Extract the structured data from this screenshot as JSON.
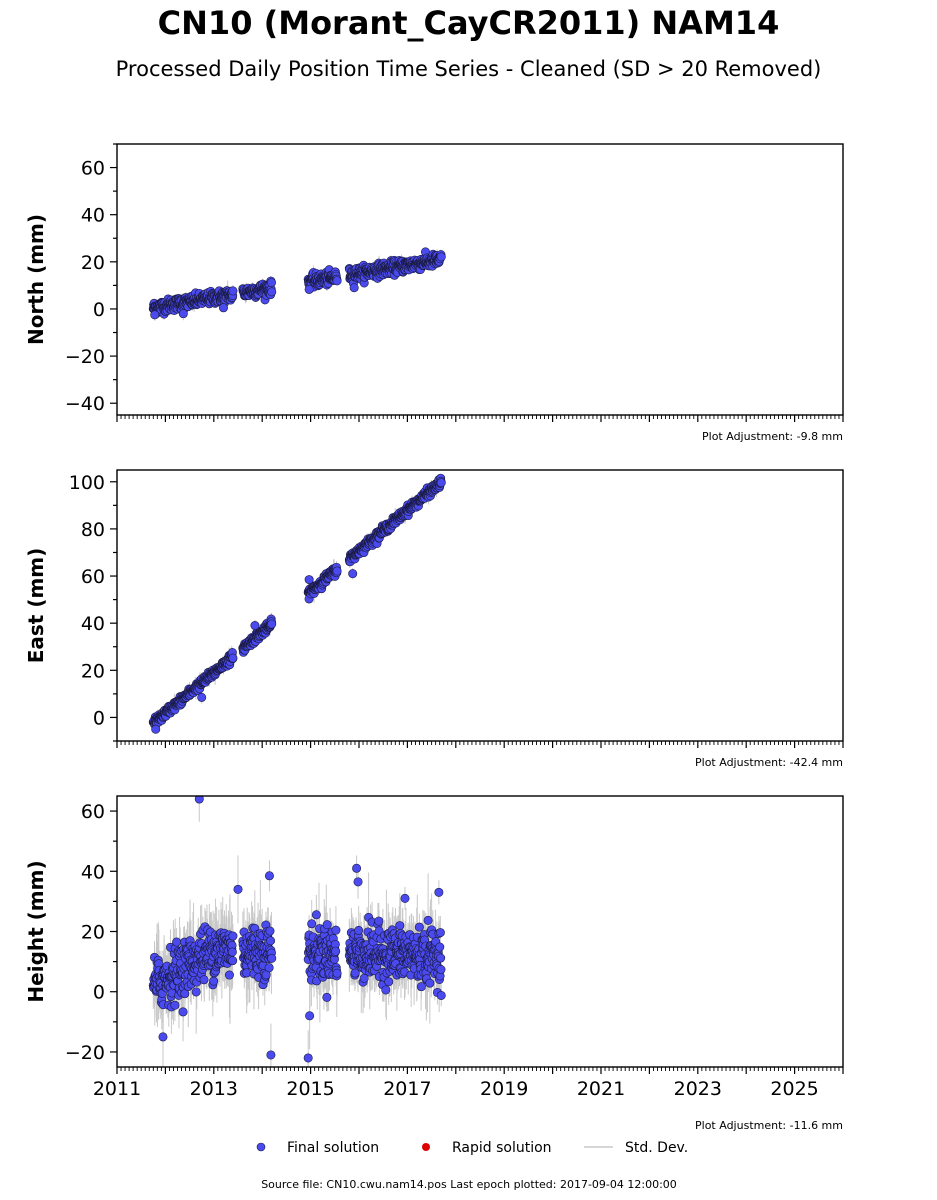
{
  "title": "CN10 (Morant_CayCR2011) NAM14",
  "subtitle": "Processed Daily Position Time Series - Cleaned (SD > 20 Removed)",
  "legend": {
    "final": "Final solution",
    "rapid": "Rapid solution",
    "std": "Std. Dev."
  },
  "colors": {
    "final": "#4a4aee",
    "rapid": "#dd0000",
    "std": "#c8c8c8",
    "marker_edge": "#1a1a40"
  },
  "footer": "Source file: CN10.cwu.nam14.pos  Last epoch plotted: 2017-09-04 12:00:00",
  "chart_data": [
    {
      "type": "scatter",
      "ylabel": "North (mm)",
      "adjustment": "Plot Adjustment: -9.8 mm",
      "xlim": [
        2011,
        2026
      ],
      "ylim": [
        -45,
        70
      ],
      "yticks": [
        -40,
        -20,
        0,
        20,
        40,
        60
      ],
      "xticks": [
        2011,
        2013,
        2015,
        2017,
        2019,
        2021,
        2023,
        2025
      ],
      "show_xtick_labels": false,
      "gaps": [
        [
          2013.4,
          2013.6
        ],
        [
          2014.2,
          2014.95
        ],
        [
          2015.55,
          2015.8
        ]
      ],
      "trend": [
        [
          2011.75,
          0.5
        ],
        [
          2017.7,
          21.0
        ]
      ],
      "scatter": 2.4,
      "std_dev": 1.8,
      "outliers": [
        [
          2014.97,
          8.3
        ],
        [
          2015.9,
          9.0
        ],
        [
          2011.78,
          -2.5
        ],
        [
          2012.37,
          -2.0
        ],
        [
          2013.2,
          0.5
        ]
      ],
      "series": [
        {
          "name": "Final solution",
          "x_range": [
            2011.75,
            2017.7
          ]
        }
      ]
    },
    {
      "type": "scatter",
      "ylabel": "East (mm)",
      "adjustment": "Plot Adjustment: -42.4 mm",
      "xlim": [
        2011,
        2026
      ],
      "ylim": [
        -10,
        105
      ],
      "yticks": [
        0,
        20,
        40,
        60,
        80,
        100
      ],
      "xticks": [
        2011,
        2013,
        2015,
        2017,
        2019,
        2021,
        2023,
        2025
      ],
      "show_xtick_labels": false,
      "gaps": [
        [
          2013.4,
          2013.6
        ],
        [
          2014.2,
          2014.95
        ],
        [
          2015.55,
          2015.8
        ]
      ],
      "trend": [
        [
          2011.75,
          -2.5
        ],
        [
          2017.7,
          100.0
        ]
      ],
      "scatter": 1.6,
      "std_dev": 2.0,
      "outliers": [
        [
          2011.8,
          -5.0
        ],
        [
          2014.97,
          58.5
        ],
        [
          2015.87,
          61.0
        ],
        [
          2012.75,
          8.5
        ],
        [
          2013.85,
          39.0
        ]
      ],
      "series": [
        {
          "name": "Final solution",
          "x_range": [
            2011.75,
            2017.7
          ]
        }
      ]
    },
    {
      "type": "scatter",
      "ylabel": "Height (mm)",
      "adjustment": "Plot Adjustment: -11.6 mm",
      "xlim": [
        2011,
        2026
      ],
      "ylim": [
        -25,
        65
      ],
      "yticks": [
        -20,
        0,
        20,
        40,
        60
      ],
      "xticks": [
        2011,
        2013,
        2015,
        2017,
        2019,
        2021,
        2023,
        2025
      ],
      "show_xtick_labels": true,
      "gaps": [
        [
          2013.4,
          2013.6
        ],
        [
          2014.2,
          2014.95
        ],
        [
          2015.55,
          2015.8
        ]
      ],
      "trend": [
        [
          2011.75,
          2.0
        ],
        [
          2013.0,
          14.0
        ],
        [
          2017.7,
          12.0
        ]
      ],
      "scatter": 8.0,
      "std_dev": 8.5,
      "outliers": [
        [
          2012.7,
          64.0
        ],
        [
          2014.15,
          38.5
        ],
        [
          2014.18,
          -21.0
        ],
        [
          2014.95,
          -22.0
        ],
        [
          2014.98,
          -8.0
        ],
        [
          2015.95,
          41.0
        ],
        [
          2015.98,
          36.5
        ],
        [
          2017.65,
          33.0
        ],
        [
          2016.95,
          31.0
        ],
        [
          2011.95,
          -15.0
        ],
        [
          2013.5,
          34.0
        ]
      ],
      "series": [
        {
          "name": "Final solution",
          "x_range": [
            2011.75,
            2017.7
          ]
        }
      ]
    }
  ]
}
